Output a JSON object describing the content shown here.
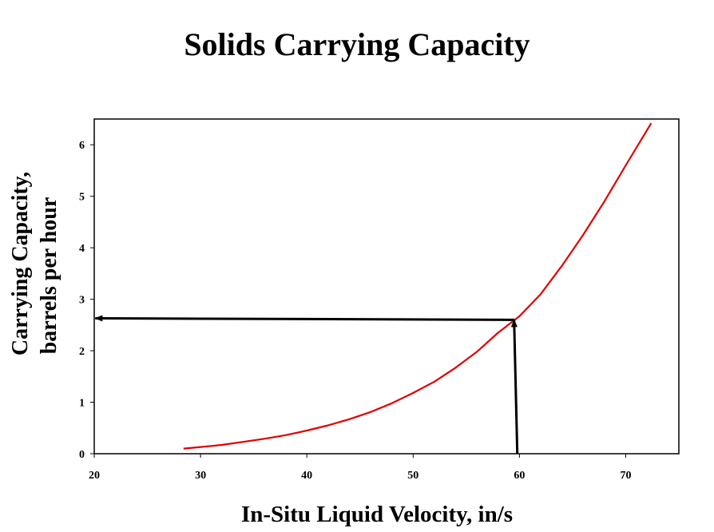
{
  "chart_data": {
    "type": "line",
    "title": "Solids Carrying Capacity",
    "xlabel": "In-Situ Liquid Velocity, in/s",
    "ylabel_line1": "Carrying Capacity,",
    "ylabel_line2": "barrels per hour",
    "xlim": [
      20,
      75
    ],
    "ylim": [
      0,
      6.5
    ],
    "xticks": [
      20,
      30,
      40,
      50,
      60,
      70
    ],
    "yticks": [
      0,
      1,
      2,
      3,
      4,
      5,
      6
    ],
    "grid": false,
    "legend": "none",
    "series": [
      {
        "color": "#e00000",
        "x": [
          28.4,
          30,
          32,
          34,
          36,
          38,
          40,
          42,
          44,
          46,
          48,
          50,
          52,
          54,
          56,
          58,
          60,
          62,
          64,
          66,
          68,
          70,
          72.4
        ],
        "y": [
          0.1,
          0.13,
          0.17,
          0.23,
          0.29,
          0.36,
          0.45,
          0.55,
          0.67,
          0.81,
          0.98,
          1.18,
          1.4,
          1.67,
          1.98,
          2.35,
          2.67,
          3.1,
          3.65,
          4.25,
          4.9,
          5.6,
          6.42
        ]
      }
    ],
    "annotations": [
      {
        "type": "arrow",
        "from": [
          59.8,
          0.0
        ],
        "to": [
          59.5,
          2.6
        ],
        "color": "#000000"
      },
      {
        "type": "arrow",
        "from": [
          59.5,
          2.6
        ],
        "to": [
          20.1,
          2.63
        ],
        "color": "#000000"
      }
    ]
  }
}
